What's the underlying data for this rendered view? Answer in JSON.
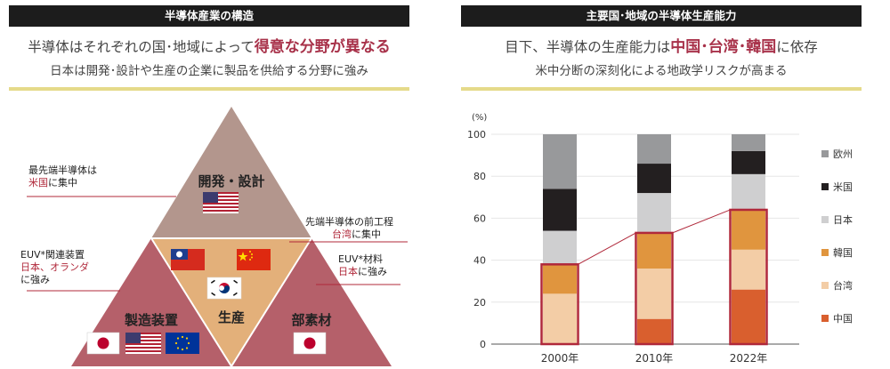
{
  "left": {
    "header": "半導体産業の構造",
    "headline_pre": "半導体はそれぞれの国･地域によって",
    "headline_highlight": "得意な分野が異なる",
    "subline": "日本は開発･設計や生産の企業に製品を供給する分野に強み",
    "segments": {
      "top": "開発・設計",
      "center": "生産",
      "left": "製造装置",
      "right": "部素材"
    },
    "annotations": {
      "a1_line1": "最先端半導体は",
      "a1_red": "米国",
      "a1_rest": "に集中",
      "a2_line1": "先端半導体の前工程",
      "a2_red": "台湾",
      "a2_rest": "に集中",
      "a3_line1": "EUV*関連装置",
      "a3_red": "日本、オランダ",
      "a3_line3": "に強み",
      "a4_line1": "EUV*材料",
      "a4_red": "日本",
      "a4_rest": "に強み"
    },
    "flag_icons": [
      "us-flag-icon",
      "taiwan-flag-icon",
      "china-flag-icon",
      "korea-flag-icon",
      "japan-flag-icon",
      "eu-flag-icon"
    ]
  },
  "right": {
    "header": "主要国･地域の半導体生産能力",
    "headline_pre": "目下、半導体の生産能力は",
    "headline_highlight": "中国･台湾･韓国",
    "headline_post": "に依存",
    "subline": "米中分断の深刻化による地政学リスクが高まる"
  },
  "chart_data": {
    "type": "bar",
    "stacked": true,
    "categories": [
      "2000年",
      "2010年",
      "2022年"
    ],
    "ylabel": "(%)",
    "ylim": [
      0,
      100
    ],
    "yticks": [
      "0",
      "20",
      "40",
      "60",
      "80",
      "100"
    ],
    "legend_position": "right",
    "series": [
      {
        "name": "中国",
        "color": "#d95f2e",
        "values": [
          0,
          12,
          26
        ]
      },
      {
        "name": "台湾",
        "color": "#f3cda6",
        "values": [
          24,
          24,
          19
        ]
      },
      {
        "name": "韓国",
        "color": "#e0953e",
        "values": [
          14,
          17,
          19
        ]
      },
      {
        "name": "日本",
        "color": "#cfcfd0",
        "values": [
          16,
          19,
          17
        ]
      },
      {
        "name": "米国",
        "color": "#231f20",
        "values": [
          20,
          14,
          11
        ]
      },
      {
        "name": "欧州",
        "color": "#98999b",
        "values": [
          26,
          14,
          8
        ]
      }
    ],
    "legend_order": [
      "欧州",
      "米国",
      "日本",
      "韓国",
      "台湾",
      "中国"
    ]
  }
}
